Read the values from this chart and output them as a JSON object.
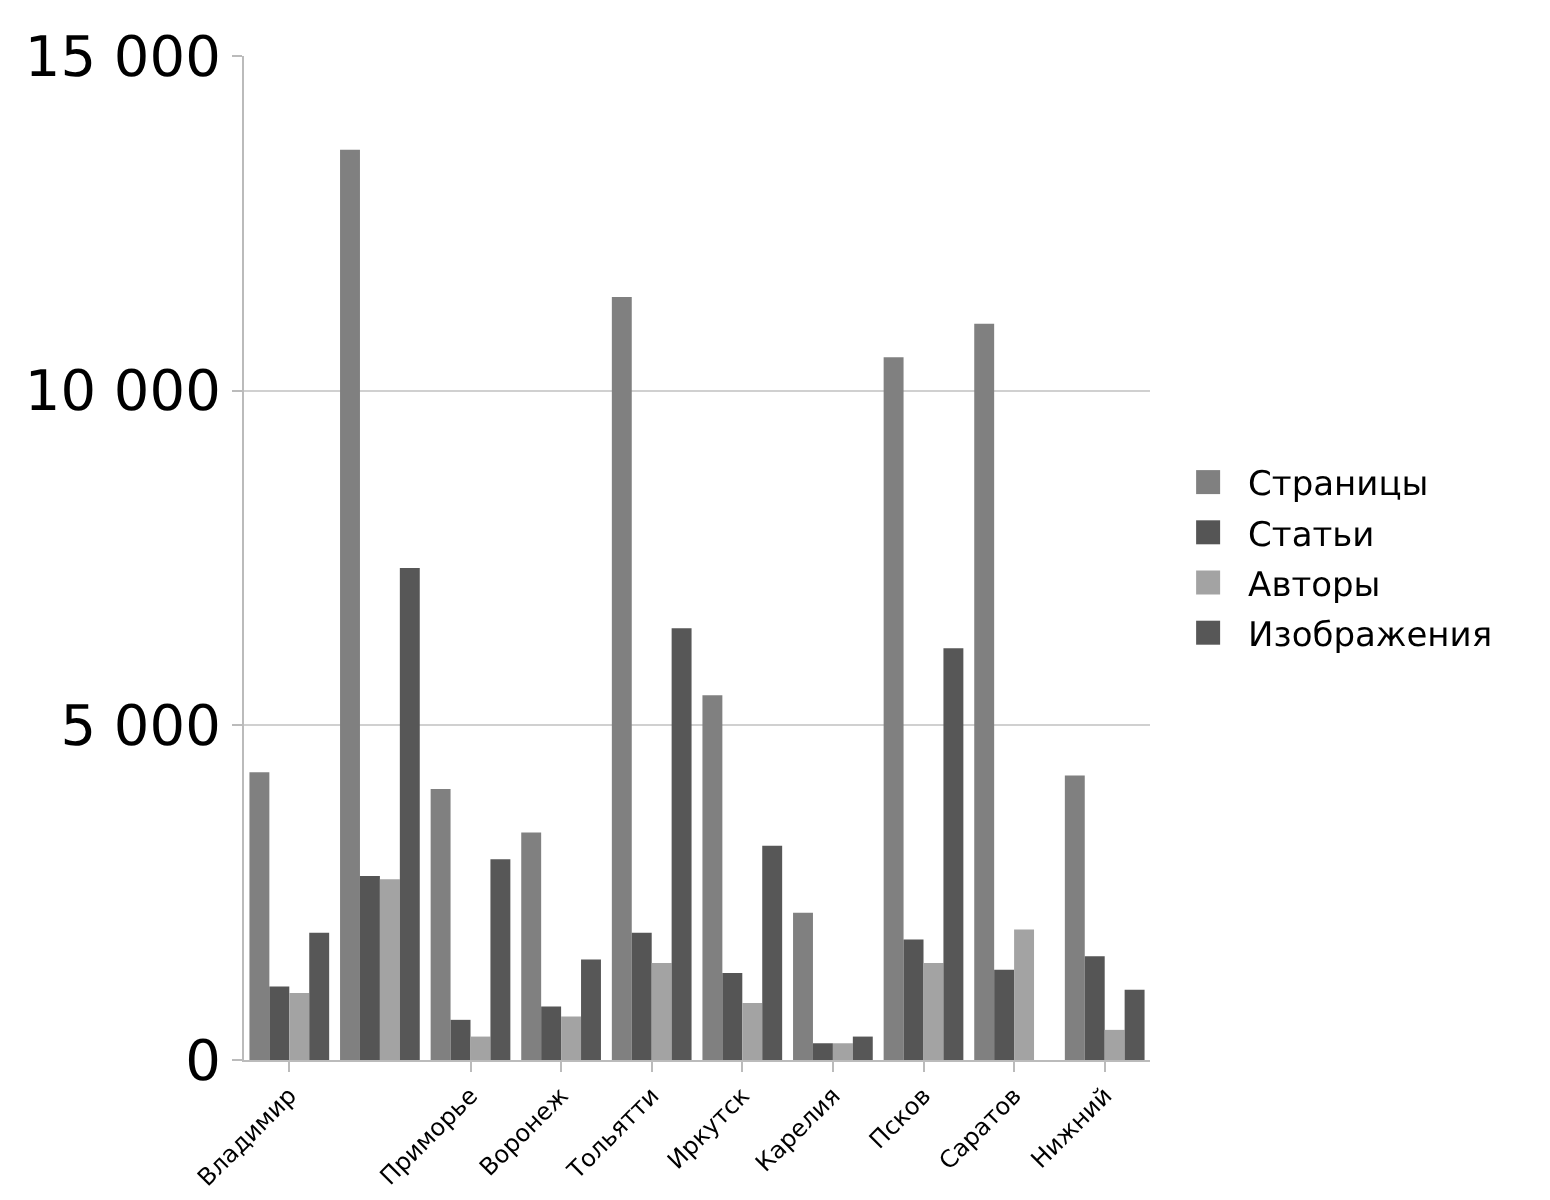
{
  "chart_data": {
    "type": "bar",
    "categories": [
      "Владимир",
      null,
      "Приморье",
      "Воронеж",
      "Тольятти",
      "Иркутск",
      "Карелия",
      "Псков",
      "Саратов",
      "Нижний"
    ],
    "series": [
      {
        "name": "Страницы",
        "color": "#808080",
        "values": [
          4300,
          13600,
          4050,
          3400,
          11400,
          5450,
          2200,
          10500,
          11000,
          4250
        ]
      },
      {
        "name": "Статьи",
        "color": "#555555",
        "values": [
          1100,
          2750,
          600,
          800,
          1900,
          1300,
          250,
          1800,
          1350,
          1550
        ]
      },
      {
        "name": "Авторы",
        "color": "#a3a3a3",
        "values": [
          1000,
          2700,
          350,
          650,
          1450,
          850,
          250,
          1450,
          1950,
          450
        ]
      },
      {
        "name": "Изображения",
        "color": "#575757",
        "values": [
          1900,
          7350,
          3000,
          1500,
          6450,
          3200,
          350,
          6150,
          0,
          1050
        ]
      }
    ],
    "ylim": [
      0,
      15000
    ],
    "yticks": [
      {
        "value": 0,
        "label": "0"
      },
      {
        "value": 5000,
        "label": "5 000"
      },
      {
        "value": 10000,
        "label": "10 000"
      },
      {
        "value": 15000,
        "label": "15 000"
      }
    ],
    "grid": "y",
    "legend": "right"
  }
}
